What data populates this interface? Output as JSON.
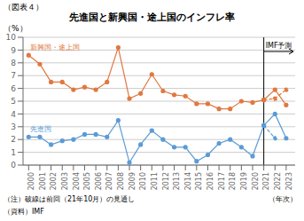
{
  "chart_data": {
    "type": "line",
    "title": "先進国と新興国・途上国のインフレ率",
    "header": "（図表４）",
    "ylabel": "（%）",
    "xlabel": "（年次）",
    "note": "（注）破線は前回（21年10月）の見通し",
    "source": "（資料）IMF",
    "annotations": [
      {
        "text": "IMF予測",
        "x": 2021
      }
    ],
    "x": [
      2000,
      2001,
      2002,
      2003,
      2004,
      2005,
      2006,
      2007,
      2008,
      2009,
      2010,
      2011,
      2012,
      2013,
      2014,
      2015,
      2016,
      2017,
      2018,
      2019,
      2020,
      2021,
      2022,
      2023
    ],
    "xlim": [
      1999.5,
      2023.8
    ],
    "xticks": [
      2000,
      2001,
      2002,
      2003,
      2004,
      2005,
      2006,
      2007,
      2008,
      2009,
      2010,
      2011,
      2012,
      2013,
      2014,
      2015,
      2016,
      2017,
      2018,
      2019,
      2020,
      2021,
      2022,
      2023
    ],
    "ylim": [
      0,
      10
    ],
    "yticks": [
      0,
      1,
      2,
      3,
      4,
      5,
      6,
      7,
      8,
      9,
      10
    ],
    "grid": true,
    "series": [
      {
        "name": "新興国・途上国",
        "color": "#e07840",
        "line_style": "solid",
        "marker": "circle",
        "values": [
          8.6,
          7.9,
          6.5,
          6.5,
          5.9,
          6.1,
          5.9,
          6.5,
          9.2,
          5.2,
          5.6,
          7.1,
          5.8,
          5.5,
          5.4,
          4.8,
          4.8,
          4.4,
          4.4,
          5.0,
          4.9,
          5.1,
          null,
          null
        ]
      },
      {
        "color": "#e07840",
        "line_style": "dashed",
        "marker": "circle",
        "values": [
          null,
          null,
          null,
          null,
          null,
          null,
          null,
          null,
          null,
          null,
          null,
          null,
          null,
          null,
          null,
          null,
          null,
          null,
          null,
          null,
          null,
          5.1,
          5.2,
          5.9
        ]
      },
      {
        "color": "#e07840",
        "line_style": "solid",
        "marker": "circle",
        "values": [
          null,
          null,
          null,
          null,
          null,
          null,
          null,
          null,
          null,
          null,
          null,
          null,
          null,
          null,
          null,
          null,
          null,
          null,
          null,
          null,
          null,
          5.1,
          5.9,
          4.7
        ]
      },
      {
        "name": "先進国",
        "color": "#5b9bd5",
        "line_style": "solid",
        "marker": "circle",
        "values": [
          2.2,
          2.2,
          1.6,
          1.9,
          2.0,
          2.4,
          2.4,
          2.2,
          3.5,
          0.2,
          1.6,
          2.7,
          2.0,
          1.4,
          1.4,
          0.3,
          0.8,
          1.7,
          2.0,
          1.4,
          0.7,
          3.1,
          null,
          null
        ]
      },
      {
        "color": "#5b9bd5",
        "line_style": "dashed",
        "marker": "circle",
        "values": [
          null,
          null,
          null,
          null,
          null,
          null,
          null,
          null,
          null,
          null,
          null,
          null,
          null,
          null,
          null,
          null,
          null,
          null,
          null,
          null,
          null,
          3.1,
          2.1,
          null
        ]
      },
      {
        "color": "#5b9bd5",
        "line_style": "solid",
        "marker": "circle",
        "values": [
          null,
          null,
          null,
          null,
          null,
          null,
          null,
          null,
          null,
          null,
          null,
          null,
          null,
          null,
          null,
          null,
          null,
          null,
          null,
          null,
          null,
          3.1,
          4.0,
          2.1
        ]
      }
    ]
  }
}
